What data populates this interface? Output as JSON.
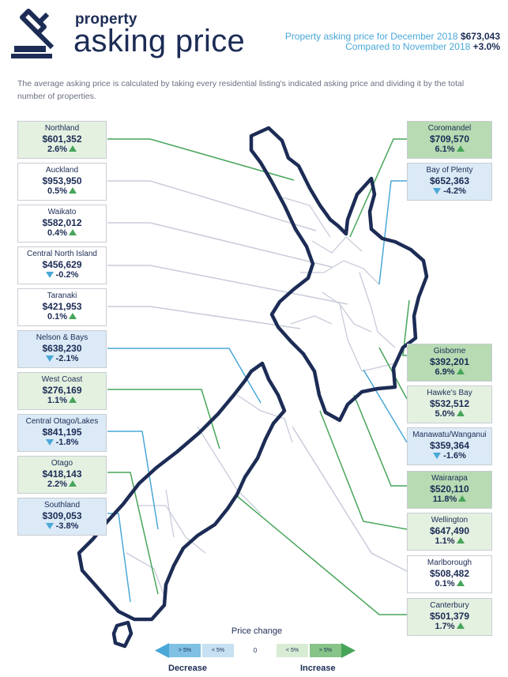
{
  "header": {
    "title_small": "property",
    "title_big": "asking price",
    "summary_line1_text": "Property asking price for December 2018",
    "summary_line1_value": "$673,043",
    "summary_line2_text": "Compared to November 2018",
    "summary_line2_value": "+3.0%"
  },
  "description": "The average asking price is calculated by taking every residential listing's indicated asking price and dividing it by the total number of properties.",
  "regions": {
    "northland": {
      "name": "Northland",
      "price": "$601,352",
      "change": "2.6%",
      "direction": "up"
    },
    "auckland": {
      "name": "Auckland",
      "price": "$953,950",
      "change": "0.5%",
      "direction": "up"
    },
    "waikato": {
      "name": "Waikato",
      "price": "$582,012",
      "change": "0.4%",
      "direction": "up"
    },
    "central_north_island": {
      "name": "Central North Island",
      "price": "$456,629",
      "change": "-0.2%",
      "direction": "down"
    },
    "taranaki": {
      "name": "Taranaki",
      "price": "$421,953",
      "change": "0.1%",
      "direction": "up"
    },
    "nelson_bays": {
      "name": "Nelson & Bays",
      "price": "$638,230",
      "change": "-2.1%",
      "direction": "down"
    },
    "west_coast": {
      "name": "West Coast",
      "price": "$276,169",
      "change": "1.1%",
      "direction": "up"
    },
    "central_otago_lakes": {
      "name": "Central Otago/Lakes",
      "price": "$841,195",
      "change": "-1.8%",
      "direction": "down"
    },
    "otago": {
      "name": "Otago",
      "price": "$418,143",
      "change": "2.2%",
      "direction": "up"
    },
    "southland": {
      "name": "Southland",
      "price": "$309,053",
      "change": "-3.8%",
      "direction": "down"
    },
    "coromandel": {
      "name": "Coromandel",
      "price": "$709,570",
      "change": "6.1%",
      "direction": "up"
    },
    "bay_of_plenty": {
      "name": "Bay of Plenty",
      "price": "$652,363",
      "change": "-4.2%",
      "direction": "down"
    },
    "gisborne": {
      "name": "Gisborne",
      "price": "$392,201",
      "change": "6.9%",
      "direction": "up"
    },
    "hawkes_bay": {
      "name": "Hawke's Bay",
      "price": "$532,512",
      "change": "5.0%",
      "direction": "up"
    },
    "manawatu_wanganui": {
      "name": "Manawatu/Wanganui",
      "price": "$359,364",
      "change": "-1.6%",
      "direction": "down"
    },
    "wairarapa": {
      "name": "Wairarapa",
      "price": "$520,110",
      "change": "11.8%",
      "direction": "up"
    },
    "wellington": {
      "name": "Wellington",
      "price": "$647,490",
      "change": "1.1%",
      "direction": "up"
    },
    "marlborough": {
      "name": "Marlborough",
      "price": "$508,482",
      "change": "0.1%",
      "direction": "up"
    },
    "canterbury": {
      "name": "Canterbury",
      "price": "$501,379",
      "change": "1.7%",
      "direction": "up"
    }
  },
  "legend": {
    "title": "Price change",
    "dec_big": "> 5%",
    "dec_small": "< 5%",
    "zero": "0",
    "inc_small": "< 5%",
    "inc_big": "> 5%",
    "decrease_label": "Decrease",
    "increase_label": "Increase"
  },
  "colors": {
    "navy": "#1c2c55",
    "increase": "#47a55a",
    "decrease": "#4aa8d8",
    "increase_light": "#e4f1e1",
    "increase_dark": "#b8dbb3",
    "decrease_light": "#dbeaf6"
  }
}
